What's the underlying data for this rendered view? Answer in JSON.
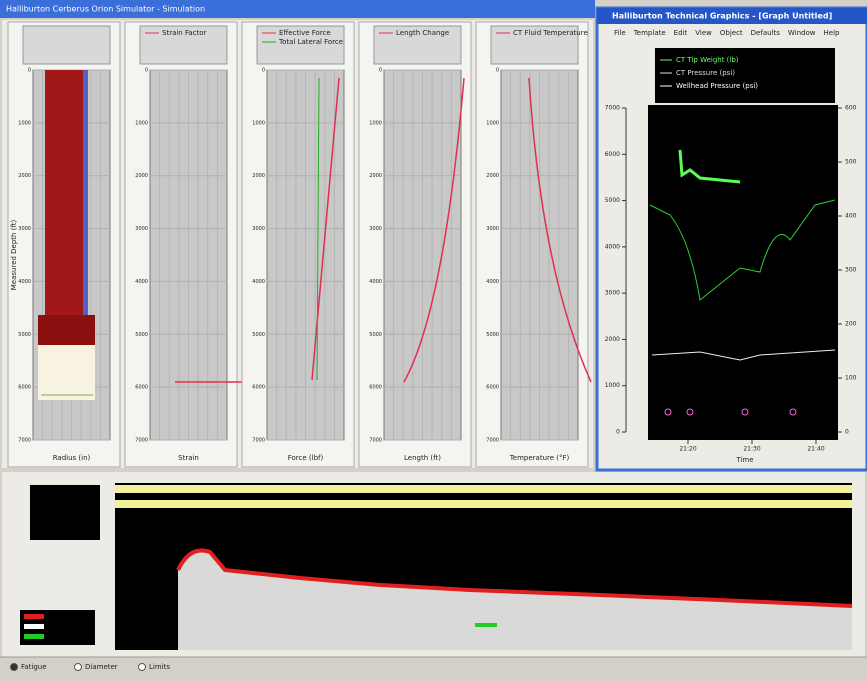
{
  "main_window": {
    "title": "Halliburton Cerberus Orion Simulator - Simulation",
    "depth_axis_label": "Measured Depth (ft)",
    "depth_ticks": [
      0,
      1000,
      2000,
      3000,
      4000,
      5000,
      6000,
      7000
    ],
    "panels": [
      {
        "legend": [],
        "xlabel": "Radius (in)"
      },
      {
        "legend": [
          "Strain Factor"
        ],
        "xlabel": "Strain"
      },
      {
        "legend": [
          "Effective Force",
          "Total Lateral Force"
        ],
        "xlabel": "Force (lbf)"
      },
      {
        "legend": [
          "Length Change"
        ],
        "xlabel": "Length (ft)"
      },
      {
        "legend": [
          "CT Fluid Temperature"
        ],
        "xlabel": "Temperature (°F)"
      }
    ]
  },
  "graphics_window": {
    "title": "Halliburton Technical Graphics - [Graph Untitled]",
    "menu": [
      "File",
      "Template",
      "Edit",
      "View",
      "Object",
      "Defaults",
      "Window",
      "Help"
    ],
    "legend": [
      "CT Tip Weight (lb)",
      "CT Pressure (psi)",
      "Wellhead Pressure (psi)"
    ],
    "yticks_left": [
      0,
      1000,
      2000,
      3000,
      4000,
      5000,
      6000,
      7000
    ],
    "yticks_right": [
      0,
      100,
      200,
      300,
      400,
      500,
      600
    ],
    "xticks": [
      "21:20",
      "21:30",
      "21:40"
    ],
    "xlabel": "Time"
  },
  "bottom_panel": {
    "options": [
      "Fatigue",
      "Diameter",
      "Limits"
    ]
  }
}
